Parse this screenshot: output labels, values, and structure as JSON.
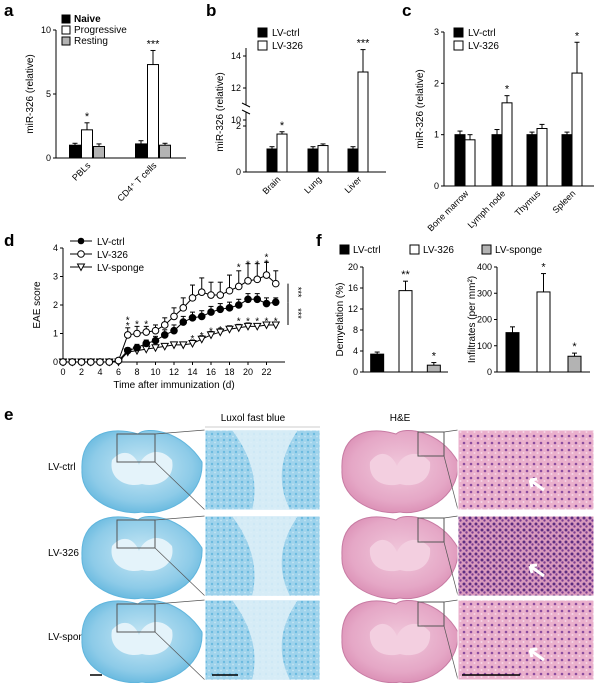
{
  "panel_labels": {
    "a": "a",
    "b": "b",
    "c": "c",
    "d": "d",
    "e": "e",
    "f": "f"
  },
  "colors": {
    "black": "#000000",
    "white": "#ffffff",
    "grey": "#b3b3b3",
    "lfb_stain": "#5fb5dd",
    "he_stain": "#d98bb2"
  },
  "chart_data": [
    {
      "panel": "a",
      "type": "bar",
      "ylabel": "miR-326 (relative)",
      "ylim": [
        0,
        10
      ],
      "yticks": [
        "0",
        "5",
        "10"
      ],
      "categories": [
        "PBLs",
        "CD4⁺ T cells"
      ],
      "series": [
        {
          "name": "Naive",
          "color": "#000000",
          "values": [
            1.0,
            1.1
          ],
          "errors": [
            0.15,
            0.25
          ]
        },
        {
          "name": "Progressive",
          "color": "#ffffff",
          "values": [
            2.2,
            7.3
          ],
          "errors": [
            0.55,
            1.1
          ]
        },
        {
          "name": "Resting",
          "color": "#b3b3b3",
          "values": [
            0.9,
            1.0
          ],
          "errors": [
            0.2,
            0.15
          ]
        }
      ],
      "annotations": [
        {
          "category": 0,
          "series": 1,
          "text": "*"
        },
        {
          "category": 1,
          "series": 1,
          "text": "***"
        }
      ]
    },
    {
      "panel": "b",
      "type": "bar",
      "axis_break": true,
      "ylabel": "miR-326 (relative)",
      "yticks": [
        "0",
        "2",
        "10",
        "12",
        "14"
      ],
      "categories": [
        "Brain",
        "Lung",
        "Liver"
      ],
      "series": [
        {
          "name": "LV-ctrl",
          "color": "#000000",
          "values": [
            1.0,
            1.0,
            1.0
          ],
          "errors": [
            0.1,
            0.1,
            0.1
          ]
        },
        {
          "name": "LV-326",
          "color": "#ffffff",
          "values": [
            1.65,
            1.15,
            13.0
          ],
          "errors": [
            0.1,
            0.07,
            1.4
          ]
        }
      ],
      "annotations": [
        {
          "category": 0,
          "series": 1,
          "text": "*"
        },
        {
          "category": 2,
          "series": 1,
          "text": "***"
        }
      ]
    },
    {
      "panel": "c",
      "type": "bar",
      "ylabel": "miR-326 (relative)",
      "ylim": [
        0,
        3
      ],
      "yticks": [
        "0",
        "1",
        "2",
        "3"
      ],
      "categories": [
        "Bone marrow",
        "Lymph node",
        "Thymus",
        "Spleen"
      ],
      "series": [
        {
          "name": "LV-ctrl",
          "color": "#000000",
          "values": [
            1.0,
            1.0,
            1.0,
            1.0
          ],
          "errors": [
            0.07,
            0.1,
            0.05,
            0.05
          ]
        },
        {
          "name": "LV-326",
          "color": "#ffffff",
          "values": [
            0.9,
            1.62,
            1.12,
            2.2
          ],
          "errors": [
            0.1,
            0.14,
            0.08,
            0.6
          ]
        }
      ],
      "annotations": [
        {
          "category": 1,
          "series": 1,
          "text": "*"
        },
        {
          "category": 3,
          "series": 1,
          "text": "*"
        }
      ]
    },
    {
      "panel": "d",
      "type": "line",
      "ylabel": "EAE score",
      "xlabel": "Time after immunization (d)",
      "xlim": [
        0,
        24
      ],
      "ylim": [
        0,
        4
      ],
      "xticks": [
        "0",
        "2",
        "4",
        "6",
        "8",
        "10",
        "12",
        "14",
        "16",
        "18",
        "20",
        "22"
      ],
      "yticks": [
        "0",
        "1",
        "2",
        "3",
        "4"
      ],
      "x": [
        0,
        1,
        2,
        3,
        4,
        5,
        6,
        7,
        8,
        9,
        10,
        11,
        12,
        13,
        14,
        15,
        16,
        17,
        18,
        19,
        20,
        21,
        22,
        23
      ],
      "series": [
        {
          "name": "LV-ctrl",
          "marker": "filled-circle",
          "values": [
            0,
            0,
            0,
            0,
            0,
            0,
            0.05,
            0.4,
            0.5,
            0.65,
            0.75,
            0.95,
            1.1,
            1.4,
            1.55,
            1.6,
            1.75,
            1.85,
            1.9,
            2.0,
            2.2,
            2.2,
            2.05,
            2.1
          ],
          "errors": [
            0,
            0,
            0,
            0,
            0,
            0,
            0,
            0.1,
            0.12,
            0.12,
            0.15,
            0.18,
            0.2,
            0.2,
            0.2,
            0.2,
            0.2,
            0.2,
            0.2,
            0.2,
            0.2,
            0.2,
            0.2,
            0.15
          ]
        },
        {
          "name": "LV-326",
          "marker": "open-circle",
          "values": [
            0,
            0,
            0,
            0,
            0,
            0,
            0.05,
            0.95,
            1.0,
            1.05,
            1.1,
            1.3,
            1.6,
            1.9,
            2.25,
            2.45,
            2.35,
            2.35,
            2.5,
            2.65,
            2.85,
            2.9,
            3.05,
            2.75
          ],
          "errors": [
            0,
            0,
            0,
            0,
            0,
            0,
            0,
            0.25,
            0.25,
            0.2,
            0.2,
            0.25,
            0.3,
            0.35,
            0.45,
            0.5,
            0.45,
            0.45,
            0.55,
            0.55,
            0.6,
            0.55,
            0.45,
            0.45
          ]
        },
        {
          "name": "LV-sponge",
          "marker": "open-triangle-down",
          "values": [
            0,
            0,
            0,
            0,
            0,
            0,
            0,
            0.35,
            0.4,
            0.45,
            0.5,
            0.55,
            0.6,
            0.6,
            0.65,
            0.8,
            0.95,
            1.05,
            1.15,
            1.2,
            1.25,
            1.25,
            1.3,
            1.3
          ],
          "errors": [
            0,
            0,
            0,
            0,
            0,
            0,
            0,
            0.1,
            0.1,
            0.1,
            0.1,
            0.1,
            0.1,
            0.1,
            0.12,
            0.12,
            0.12,
            0.12,
            0.12,
            0.12,
            0.12,
            0.1,
            0.1,
            0.1
          ]
        }
      ],
      "annotations": [
        {
          "x": 7,
          "y": 1.3,
          "text": "*"
        },
        {
          "x": 7,
          "y": 1.5,
          "text": "*"
        },
        {
          "x": 8,
          "y": 1.35,
          "text": "*"
        },
        {
          "x": 9,
          "y": 1.35,
          "text": "*"
        },
        {
          "x": 14,
          "y": 0.85,
          "text": "*"
        },
        {
          "x": 15,
          "y": 0.95,
          "text": "*"
        },
        {
          "x": 16,
          "y": 1.1,
          "text": "*"
        },
        {
          "x": 17,
          "y": 1.15,
          "text": "*"
        },
        {
          "x": 19,
          "y": 1.45,
          "text": "*"
        },
        {
          "x": 20,
          "y": 1.45,
          "text": "*"
        },
        {
          "x": 21,
          "y": 1.45,
          "text": "*"
        },
        {
          "x": 22,
          "y": 1.45,
          "text": "*"
        },
        {
          "x": 23,
          "y": 1.45,
          "text": "*"
        },
        {
          "x": 19,
          "y": 3.35,
          "text": "*"
        },
        {
          "x": 20,
          "y": 3.45,
          "text": "*"
        },
        {
          "x": 21,
          "y": 3.45,
          "text": "*"
        },
        {
          "x": 22,
          "y": 3.5,
          "text": "*"
        },
        {
          "x": 22,
          "y": 3.7,
          "text": "*"
        }
      ],
      "bracket_labels": [
        "***",
        "***"
      ]
    },
    {
      "panel": "f-left",
      "type": "bar",
      "ylabel": "Demyelation (%)",
      "ylim": [
        0,
        20
      ],
      "yticks": [
        "0",
        "4",
        "8",
        "12",
        "16",
        "20"
      ],
      "categories": [
        "LV-ctrl",
        "LV-326",
        "LV-sponge"
      ],
      "series": [
        {
          "name": "",
          "values": [
            3.4,
            15.5,
            1.3
          ],
          "errors": [
            0.4,
            1.8,
            0.5
          ],
          "colors": [
            "#000000",
            "#ffffff",
            "#b3b3b3"
          ]
        }
      ],
      "annotations": [
        {
          "category": 1,
          "text": "**"
        },
        {
          "category": 2,
          "text": "*"
        }
      ]
    },
    {
      "panel": "f-right",
      "type": "bar",
      "ylabel": "Infiltrates (per mm²)",
      "ylim": [
        0,
        400
      ],
      "yticks": [
        "0",
        "100",
        "200",
        "300",
        "400"
      ],
      "categories": [
        "LV-ctrl",
        "LV-326",
        "LV-sponge"
      ],
      "series": [
        {
          "name": "",
          "values": [
            150,
            305,
            60
          ],
          "errors": [
            22,
            70,
            12
          ],
          "colors": [
            "#000000",
            "#ffffff",
            "#b3b3b3"
          ]
        }
      ],
      "annotations": [
        {
          "category": 1,
          "text": "*"
        },
        {
          "category": 2,
          "text": "*"
        }
      ]
    }
  ],
  "legend_f": [
    "LV-ctrl",
    "LV-326",
    "LV-sponge"
  ],
  "histology": {
    "lfb_title": "Luxol fast blue",
    "he_title": "H&E",
    "rows": [
      "LV-ctrl",
      "LV-326",
      "LV-sponge"
    ]
  }
}
